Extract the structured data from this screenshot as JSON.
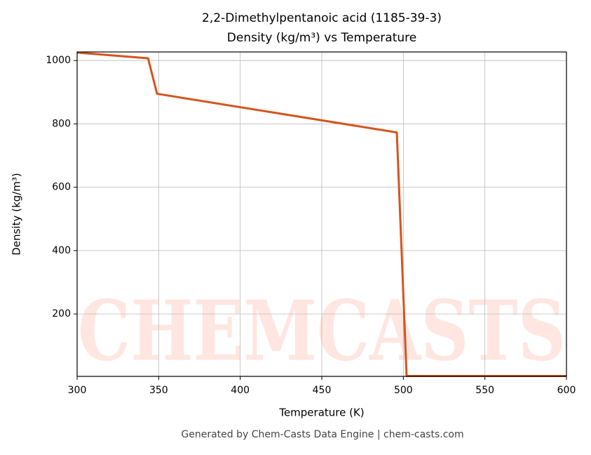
{
  "chart_data": {
    "type": "line",
    "title": "2,2-Dimethylpentanoic acid (1185-39-3)",
    "subtitle": "Density (kg/m³) vs Temperature",
    "x_label": "Temperature (K)",
    "y_label": "Density (kg/m³)",
    "footer": "Generated by Chem-Casts Data Engine | chem-casts.com",
    "watermark": "CHEMCASTS",
    "x": [
      300,
      343.5,
      349,
      496,
      502,
      600
    ],
    "series": [
      {
        "name": "Density",
        "color": "#d4541e",
        "values": [
          1025,
          1007,
          895,
          773,
          4,
          4
        ]
      }
    ],
    "xlim": [
      300,
      600
    ],
    "xticks": [
      300,
      350,
      400,
      450,
      500,
      550,
      600
    ],
    "ylim": [
      3,
      1027
    ],
    "yticks": [
      200,
      400,
      600,
      800,
      1000
    ],
    "grid": true
  }
}
